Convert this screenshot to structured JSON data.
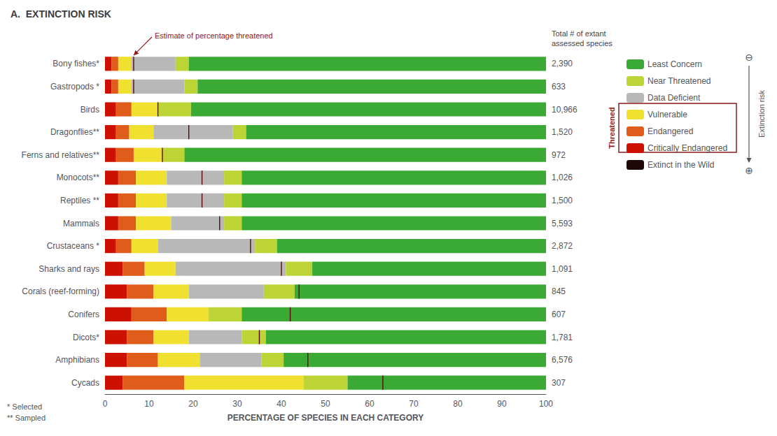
{
  "chart_data": {
    "type": "bar",
    "orientation": "horizontal",
    "stacked": true,
    "title": "A.  EXTINCTION RISK",
    "xlabel": "PERCENTAGE OF SPECIES IN EACH CATEGORY",
    "categories": [
      "Bony fishes*",
      "Gastropods *",
      "Birds",
      "Dragonflies**",
      "Ferns and relatives**",
      "Monocots**",
      "Reptiles **",
      "Mammals",
      "Crustaceans *",
      "Sharks and rays",
      "Corals (reef-forming)",
      "Conifers",
      "Dicots*",
      "Amphibians",
      "Cycads"
    ],
    "series": [
      {
        "name": "Critically Endangered",
        "color": "#cc1100",
        "values": [
          1.5,
          1.5,
          2.5,
          2.5,
          2.5,
          3.0,
          3.0,
          3.0,
          2.5,
          4.0,
          5.0,
          6.0,
          5.0,
          5.0,
          4.0
        ]
      },
      {
        "name": "Endangered",
        "color": "#e05c1a",
        "values": [
          1.5,
          1.5,
          3.5,
          3.0,
          4.0,
          4.0,
          4.0,
          4.0,
          3.5,
          5.0,
          6.0,
          8.0,
          6.0,
          7.0,
          14.0
        ]
      },
      {
        "name": "Vulnerable",
        "color": "#f0e030",
        "values": [
          3.0,
          3.0,
          6.0,
          5.5,
          6.5,
          7.0,
          7.0,
          8.0,
          6.0,
          7.0,
          8.0,
          9.5,
          8.0,
          9.5,
          27.0
        ]
      },
      {
        "name": "Data Deficient",
        "color": "#b8b8b8",
        "values": [
          10.0,
          12.0,
          0.0,
          18.0,
          0.0,
          13.0,
          13.0,
          12.0,
          22.0,
          25.0,
          17.0,
          0.0,
          12.0,
          14.0,
          0.0
        ]
      },
      {
        "name": "Near Threatened",
        "color": "#bcd435",
        "values": [
          3.0,
          3.0,
          7.5,
          3.0,
          5.0,
          4.0,
          4.0,
          4.0,
          5.0,
          6.0,
          7.0,
          7.5,
          5.5,
          5.0,
          10.0
        ]
      },
      {
        "name": "Least Concern",
        "color": "#3aaa35",
        "values": [
          81.0,
          79.0,
          80.5,
          68.0,
          82.0,
          69.0,
          69.0,
          69.0,
          61.0,
          53.0,
          57.0,
          69.0,
          63.5,
          59.5,
          45.0
        ]
      },
      {
        "name": "Extinct in the Wild",
        "color": "#200808",
        "values": [
          null,
          null,
          null,
          null,
          null,
          null,
          null,
          null,
          null,
          null,
          null,
          null,
          null,
          null,
          null
        ]
      }
    ],
    "threat_lines": {
      "color": "#5a0808",
      "values": [
        6.5,
        6.5,
        12.0,
        19.0,
        13.0,
        22.0,
        22.0,
        26.0,
        33.0,
        40.0,
        44.0,
        42.0,
        35.0,
        46.0,
        63.0
      ]
    },
    "counts_title": "Total # of extant\nassessed species",
    "counts": [
      {
        "value": 2390,
        "label": "2,390"
      },
      {
        "value": 633,
        "label": "633"
      },
      {
        "value": 10966,
        "label": "10,966"
      },
      {
        "value": 1520,
        "label": "1,520"
      },
      {
        "value": 972,
        "label": "972"
      },
      {
        "value": 1026,
        "label": "1,026"
      },
      {
        "value": 1500,
        "label": "1,500"
      },
      {
        "value": 5593,
        "label": "5,593"
      },
      {
        "value": 2872,
        "label": "2,872"
      },
      {
        "value": 1091,
        "label": "1,091"
      },
      {
        "value": 845,
        "label": "845"
      },
      {
        "value": 607,
        "label": "607"
      },
      {
        "value": 1781,
        "label": "1,781"
      },
      {
        "value": 6576,
        "label": "6,576"
      },
      {
        "value": 307,
        "label": "307"
      }
    ],
    "annotations": [
      {
        "text": "Estimate of percentage threatened",
        "x": 6.5,
        "category": "Bony fishes*",
        "color": "#8b1a1a"
      },
      {
        "text": "Threatened",
        "color": "#8b1a1a",
        "series": [
          "Vulnerable",
          "Endangered",
          "Critically Endangered"
        ]
      },
      {
        "text": "Extinction risk",
        "from": "⊖",
        "to": "⊕"
      },
      {
        "text": "* Selected\n** Sampled"
      }
    ],
    "xlim": [
      0,
      100
    ],
    "xticks": [
      0,
      10,
      20,
      30,
      40,
      50,
      60,
      70,
      80,
      90,
      100
    ],
    "grid": false,
    "legend": "right"
  }
}
